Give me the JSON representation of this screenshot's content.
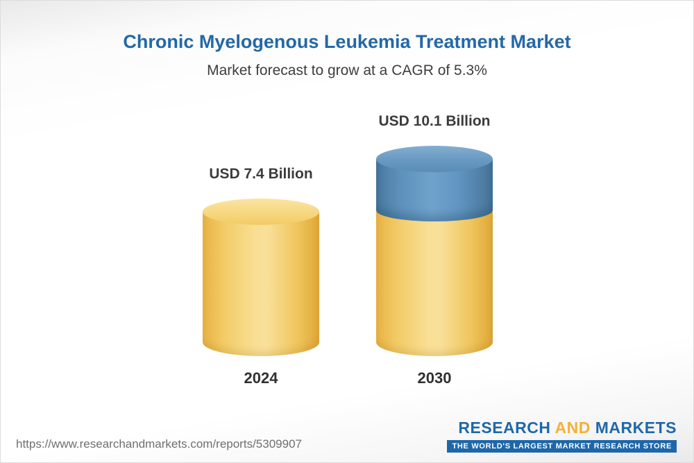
{
  "chart_data": {
    "type": "bar",
    "variant": "3d-cylinder",
    "title": "Chronic Myelogenous Leukemia Treatment Market",
    "subtitle": "Market forecast to grow at a CAGR of 5.3%",
    "cagr_percent": 5.3,
    "unit": "USD Billion",
    "categories": [
      "2024",
      "2030"
    ],
    "values": [
      7.4,
      10.1
    ],
    "value_labels": [
      "USD 7.4 Billion",
      "USD 10.1 Billion"
    ],
    "growth_segment_note": "2030 bar shows gold base equal to 2024 value plus blue growth segment on top",
    "ylim": [
      0,
      10.1
    ],
    "legend": "none",
    "grid": false,
    "colors": {
      "title_text": "#2368A7",
      "bar_gold": "#F5CE6E",
      "bar_blue": "#5C8FBA",
      "label_text": "#3B3B3B"
    }
  },
  "footer": {
    "url": "https://www.researchandmarkets.com/reports/5309907",
    "logo": {
      "word1": "RESEARCH",
      "word2": "AND",
      "word3": "MARKETS",
      "tagline": "THE WORLD'S LARGEST MARKET RESEARCH STORE"
    }
  }
}
